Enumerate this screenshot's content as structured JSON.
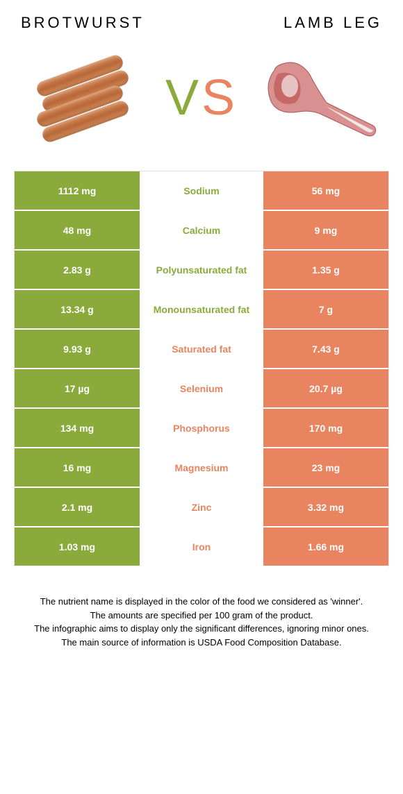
{
  "titles": {
    "left": "BROTWURST",
    "right": "LAMB LEG"
  },
  "vs": {
    "v": "V",
    "s": "S"
  },
  "colors": {
    "left": "#8aaa3b",
    "right": "#e8845f",
    "left_winner_text": "#8aaa3b",
    "right_winner_text": "#e8845f"
  },
  "rows": [
    {
      "left": "1112 mg",
      "label": "Sodium",
      "right": "56 mg",
      "winner": "left"
    },
    {
      "left": "48 mg",
      "label": "Calcium",
      "right": "9 mg",
      "winner": "left"
    },
    {
      "left": "2.83 g",
      "label": "Polyunsaturated fat",
      "right": "1.35 g",
      "winner": "left"
    },
    {
      "left": "13.34 g",
      "label": "Monounsaturated fat",
      "right": "7 g",
      "winner": "left"
    },
    {
      "left": "9.93 g",
      "label": "Saturated fat",
      "right": "7.43 g",
      "winner": "right"
    },
    {
      "left": "17 µg",
      "label": "Selenium",
      "right": "20.7 µg",
      "winner": "right"
    },
    {
      "left": "134 mg",
      "label": "Phosphorus",
      "right": "170 mg",
      "winner": "right"
    },
    {
      "left": "16 mg",
      "label": "Magnesium",
      "right": "23 mg",
      "winner": "right"
    },
    {
      "left": "2.1 mg",
      "label": "Zinc",
      "right": "3.32 mg",
      "winner": "right"
    },
    {
      "left": "1.03 mg",
      "label": "Iron",
      "right": "1.66 mg",
      "winner": "right"
    }
  ],
  "footer": {
    "l1": "The nutrient name is displayed in the color of the food we considered as 'winner'.",
    "l2": "The amounts are specified per 100 gram of the product.",
    "l3": "The infographic aims to display only the significant differences, ignoring minor ones.",
    "l4": "The main source of information is USDA Food Composition Database."
  }
}
